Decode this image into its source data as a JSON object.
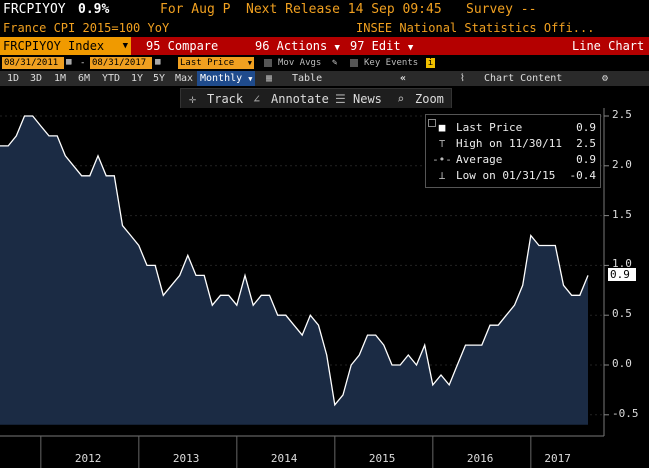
{
  "colors": {
    "accent": "#f09a00",
    "bar": "#b40000",
    "fill": "#1b2b44",
    "line": "#ffffff"
  },
  "header": {
    "ticker": "FRCPIYOY",
    "value": "0.9%",
    "for_label": "For Aug P",
    "next_release": "Next Release 14 Sep 09:45",
    "survey": "Survey --"
  },
  "subheader": {
    "description": "France CPI 2015=100 YoY",
    "source": "INSEE National Statistics Offi..."
  },
  "menubar": {
    "security": "FRCPIYOY Index",
    "compare": "95 Compare",
    "actions": "96 Actions",
    "edit": "97 Edit",
    "view": "Line Chart"
  },
  "controls": {
    "start_date": "08/31/2011",
    "end_date": "08/31/2017",
    "field": "Last Price",
    "mov_avgs": "Mov Avgs",
    "key_events": "Key Events"
  },
  "range_buttons": [
    "1D",
    "3D",
    "1M",
    "6M",
    "YTD",
    "1Y",
    "5Y",
    "Max"
  ],
  "period": "Monthly",
  "table_label": "Table",
  "chart_content": "Chart Content",
  "toolbar": {
    "track": "Track",
    "annotate": "Annotate",
    "news": "News",
    "zoom": "Zoom"
  },
  "legend": {
    "last_price_label": "Last Price",
    "last_price_value": "0.9",
    "high_label": "High on 11/30/11",
    "high_value": "2.5",
    "average_label": "Average",
    "average_value": "0.9",
    "low_label": "Low on 01/31/15",
    "low_value": "-0.4"
  },
  "chart_data": {
    "type": "area",
    "ylim": [
      -0.6,
      2.6
    ],
    "y_ticks": [
      "2.5",
      "2.0",
      "1.5",
      "1.0",
      "0.5",
      "0.0",
      "-0.5"
    ],
    "x_ticks": [
      "2012",
      "2013",
      "2014",
      "2015",
      "2016",
      "2017"
    ],
    "last_value_label": "0.9",
    "dates": [
      "2011-08",
      "2011-09",
      "2011-10",
      "2011-11",
      "2011-12",
      "2012-01",
      "2012-02",
      "2012-03",
      "2012-04",
      "2012-05",
      "2012-06",
      "2012-07",
      "2012-08",
      "2012-09",
      "2012-10",
      "2012-11",
      "2012-12",
      "2013-01",
      "2013-02",
      "2013-03",
      "2013-04",
      "2013-05",
      "2013-06",
      "2013-07",
      "2013-08",
      "2013-09",
      "2013-10",
      "2013-11",
      "2013-12",
      "2014-01",
      "2014-02",
      "2014-03",
      "2014-04",
      "2014-05",
      "2014-06",
      "2014-07",
      "2014-08",
      "2014-09",
      "2014-10",
      "2014-11",
      "2014-12",
      "2015-01",
      "2015-02",
      "2015-03",
      "2015-04",
      "2015-05",
      "2015-06",
      "2015-07",
      "2015-08",
      "2015-09",
      "2015-10",
      "2015-11",
      "2015-12",
      "2016-01",
      "2016-02",
      "2016-03",
      "2016-04",
      "2016-05",
      "2016-06",
      "2016-07",
      "2016-08",
      "2016-09",
      "2016-10",
      "2016-11",
      "2016-12",
      "2017-01",
      "2017-02",
      "2017-03",
      "2017-04",
      "2017-05",
      "2017-06",
      "2017-07",
      "2017-08"
    ],
    "values": [
      2.2,
      2.2,
      2.3,
      2.5,
      2.5,
      2.4,
      2.3,
      2.3,
      2.1,
      2.0,
      1.9,
      1.9,
      2.1,
      1.9,
      1.9,
      1.4,
      1.3,
      1.2,
      1.0,
      1.0,
      0.7,
      0.8,
      0.9,
      1.1,
      0.9,
      0.9,
      0.6,
      0.7,
      0.7,
      0.6,
      0.9,
      0.6,
      0.7,
      0.7,
      0.5,
      0.5,
      0.4,
      0.3,
      0.5,
      0.4,
      0.1,
      -0.4,
      -0.3,
      0.0,
      0.1,
      0.3,
      0.3,
      0.2,
      0.0,
      0.0,
      0.1,
      0.0,
      0.2,
      -0.2,
      -0.1,
      -0.2,
      0.0,
      0.2,
      0.2,
      0.2,
      0.4,
      0.4,
      0.5,
      0.6,
      0.8,
      1.3,
      1.2,
      1.2,
      1.2,
      0.8,
      0.7,
      0.7,
      0.9
    ]
  }
}
